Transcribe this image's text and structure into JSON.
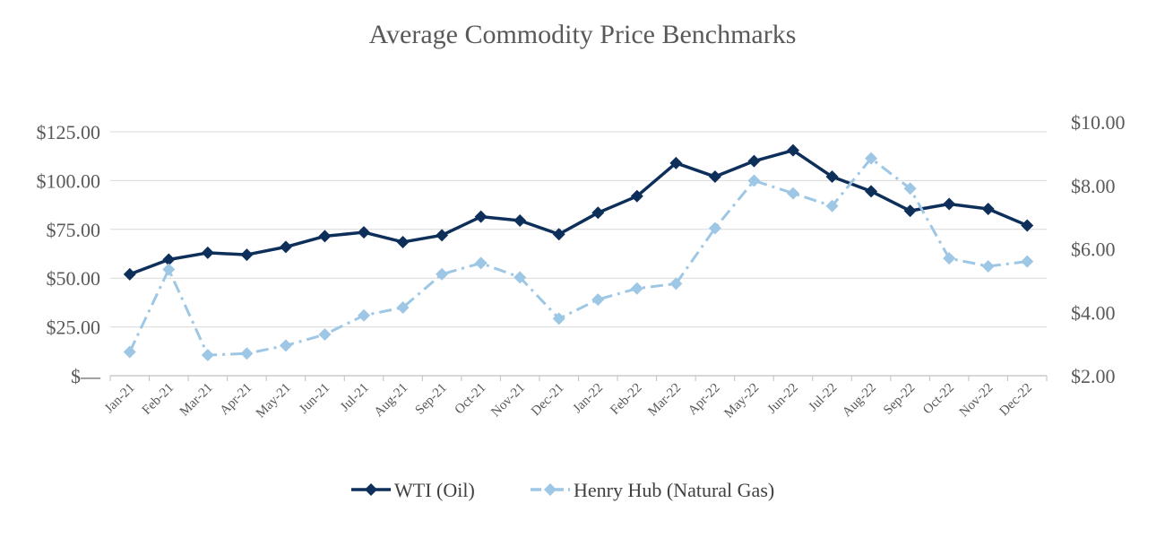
{
  "chart_data": {
    "type": "line",
    "title": "Average Commodity Price Benchmarks",
    "xlabel": "",
    "ylabel": "",
    "y2label": "",
    "categories": [
      "Jan-21",
      "Feb-21",
      "Mar-21",
      "Apr-21",
      "May-21",
      "Jun-21",
      "Jul-21",
      "Aug-21",
      "Sep-21",
      "Oct-21",
      "Nov-21",
      "Dec-21",
      "Jan-22",
      "Feb-22",
      "Mar-22",
      "Apr-22",
      "May-22",
      "Jun-22",
      "Jul-22",
      "Aug-22",
      "Sep-22",
      "Oct-22",
      "Nov-22",
      "Dec-22"
    ],
    "ylim": [
      0,
      125
    ],
    "y2lim": [
      2,
      10
    ],
    "yticks": [
      0,
      25,
      50,
      75,
      100,
      125
    ],
    "ytick_labels": [
      "$—",
      "$25.00",
      "$50.00",
      "$75.00",
      "$100.00",
      "$125.00"
    ],
    "y2ticks": [
      2,
      4,
      6,
      8,
      10
    ],
    "y2tick_labels": [
      "$2.00",
      "$4.00",
      "$6.00",
      "$8.00",
      "$10.00"
    ],
    "grid": true,
    "legend_position": "bottom",
    "series": [
      {
        "name": "WTI (Oil)",
        "axis": "left",
        "color": "#0d2f5a",
        "style": "solid",
        "marker": "diamond",
        "values": [
          52,
          59.5,
          63,
          62,
          66,
          71.5,
          73.5,
          68.5,
          72,
          81.5,
          79.5,
          72.5,
          83.5,
          92,
          109,
          102,
          110,
          115.5,
          102,
          94.5,
          84.5,
          88,
          85.5,
          77
        ]
      },
      {
        "name": "Henry Hub (Natural Gas)",
        "axis": "right",
        "color": "#9dc7e4",
        "style": "dashdot",
        "marker": "diamond",
        "values": [
          2.75,
          5.35,
          2.65,
          2.7,
          2.95,
          3.3,
          3.9,
          4.15,
          5.2,
          5.55,
          5.1,
          3.8,
          4.4,
          4.75,
          4.9,
          6.65,
          8.15,
          7.75,
          7.35,
          8.85,
          7.9,
          5.7,
          5.45,
          5.6
        ]
      }
    ]
  }
}
